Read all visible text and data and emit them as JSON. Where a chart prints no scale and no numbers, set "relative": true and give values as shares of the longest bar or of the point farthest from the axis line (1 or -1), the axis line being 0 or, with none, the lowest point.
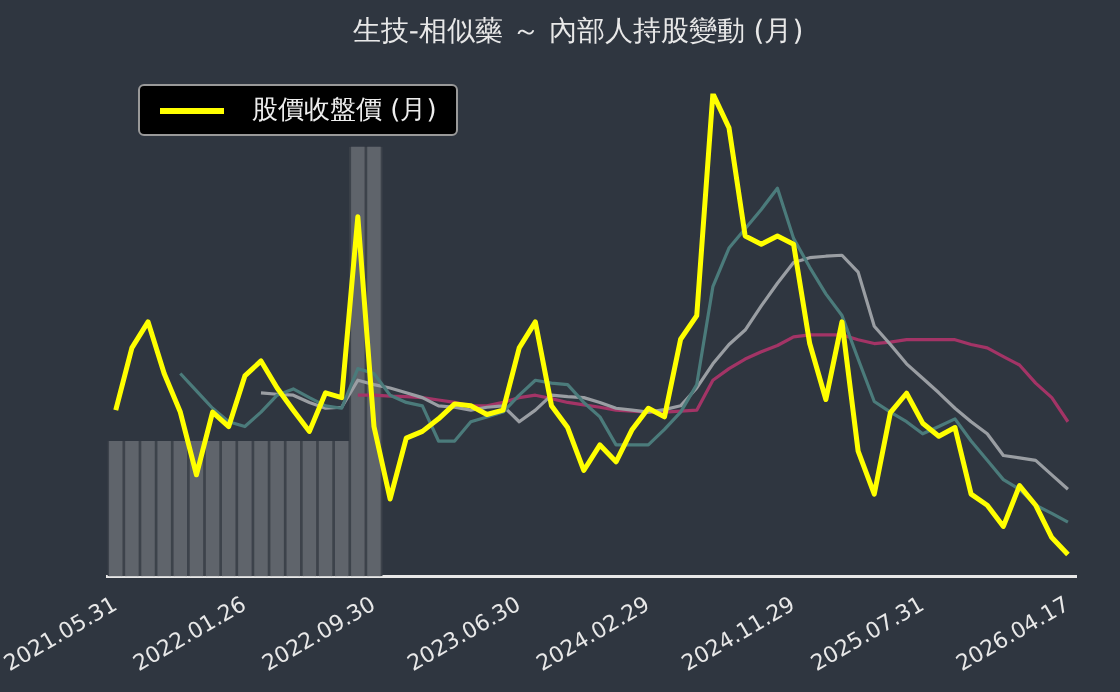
{
  "chart_data": {
    "type": "line",
    "title": "生技-相似藥 ～ 內部人持股變動 (月)",
    "relative": true,
    "grid": false,
    "legend": "top left",
    "categories": [
      "2021.05.31",
      null,
      null,
      null,
      null,
      null,
      null,
      null,
      "2022.01.26",
      null,
      null,
      null,
      null,
      null,
      null,
      null,
      "2022.09.30",
      null,
      null,
      null,
      null,
      null,
      null,
      null,
      null,
      "2023.06.30",
      null,
      null,
      null,
      null,
      null,
      null,
      null,
      "2024.02.29",
      null,
      null,
      null,
      null,
      null,
      null,
      null,
      null,
      "2024.11.29",
      null,
      null,
      null,
      null,
      null,
      null,
      null,
      "2025.07.31",
      null,
      null,
      null,
      null,
      null,
      null,
      null,
      null,
      "2026.04.17"
    ],
    "series": [
      {
        "type": "bar",
        "color": "#5f646b",
        "values": [
          0.28,
          0.28,
          0.28,
          0.28,
          0.28,
          0.28,
          0.28,
          0.28,
          0.28,
          0.28,
          0.28,
          0.28,
          0.28,
          0.28,
          0.28,
          0.89,
          0.89,
          null,
          null,
          null,
          null,
          null,
          null,
          null,
          null,
          null,
          null,
          null,
          null,
          null,
          null,
          null,
          null,
          null,
          null,
          null,
          null,
          null,
          null,
          null,
          null,
          null,
          null,
          null,
          null,
          null,
          null,
          null,
          null,
          null,
          null,
          null,
          null,
          null,
          null,
          null,
          null,
          null,
          null,
          null
        ]
      },
      {
        "color": "#4b7b7b",
        "values": [
          null,
          null,
          null,
          null,
          0.42,
          0.384,
          0.348,
          0.32,
          0.31,
          0.34,
          0.375,
          0.388,
          0.37,
          0.353,
          0.348,
          0.43,
          0.42,
          0.375,
          0.36,
          0.353,
          0.28,
          0.28,
          0.32,
          0.33,
          0.34,
          0.375,
          0.406,
          0.4,
          0.397,
          0.36,
          0.33,
          0.272,
          0.272,
          0.272,
          0.304,
          0.34,
          0.397,
          0.6,
          0.68,
          0.72,
          0.76,
          0.804,
          0.7,
          0.64,
          0.585,
          0.54,
          0.45,
          0.362,
          0.34,
          0.32,
          0.295,
          0.31,
          0.326,
          0.28,
          0.24,
          0.2,
          0.18,
          0.147,
          0.13,
          0.112
        ]
      },
      {
        "color": "#9a9ea3",
        "values": [
          null,
          null,
          null,
          null,
          null,
          null,
          null,
          null,
          null,
          0.38,
          0.377,
          0.375,
          0.36,
          0.348,
          0.35,
          0.406,
          0.397,
          0.39,
          0.38,
          0.37,
          0.353,
          0.35,
          0.344,
          0.35,
          0.353,
          0.32,
          0.344,
          0.375,
          0.372,
          0.37,
          0.36,
          0.348,
          0.344,
          0.34,
          0.345,
          0.353,
          0.39,
          0.44,
          0.48,
          0.51,
          0.56,
          0.607,
          0.65,
          0.66,
          0.663,
          0.665,
          0.63,
          0.518,
          0.48,
          0.44,
          0.41,
          0.38,
          0.348,
          0.32,
          0.295,
          0.25,
          0.245,
          0.24,
          0.21,
          0.18
        ]
      },
      {
        "color": "#a33466",
        "values": [
          null,
          null,
          null,
          null,
          null,
          null,
          null,
          null,
          null,
          null,
          null,
          null,
          null,
          null,
          null,
          0.375,
          0.375,
          0.373,
          0.372,
          0.37,
          0.365,
          0.36,
          0.353,
          0.353,
          0.36,
          0.37,
          0.375,
          0.368,
          0.36,
          0.355,
          0.35,
          0.344,
          0.342,
          0.34,
          0.34,
          0.342,
          0.344,
          0.406,
          0.43,
          0.45,
          0.465,
          0.478,
          0.496,
          0.5,
          0.5,
          0.5,
          0.49,
          0.482,
          0.485,
          0.49,
          0.49,
          0.49,
          0.49,
          0.48,
          0.473,
          0.455,
          0.4375,
          0.4,
          0.37,
          0.32
        ]
      },
      {
        "name": "股價收盤價 (月)",
        "color": "#ffff00",
        "values": [
          0.344,
          0.473,
          0.527,
          0.42,
          0.34,
          0.21,
          0.34,
          0.31,
          0.415,
          0.446,
          0.39,
          0.344,
          0.3,
          0.38,
          0.37,
          0.745,
          0.31,
          0.16,
          0.286,
          0.3,
          0.326,
          0.357,
          0.353,
          0.335,
          0.344,
          0.473,
          0.527,
          0.353,
          0.308,
          0.219,
          0.272,
          0.237,
          0.304,
          0.348,
          0.33,
          0.491,
          0.54,
          1,
          0.929,
          0.705,
          0.688,
          0.705,
          0.688,
          0.482,
          0.366,
          0.527,
          0.259,
          0.17,
          0.339,
          0.379,
          0.317,
          0.29,
          0.308,
          0.17,
          0.147,
          0.103,
          0.1875,
          0.147,
          0.08,
          0.045
        ]
      }
    ]
  }
}
